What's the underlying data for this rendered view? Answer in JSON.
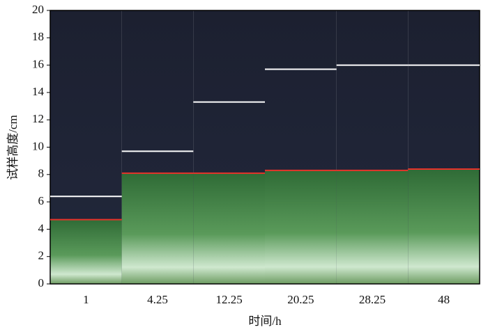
{
  "chart_data": {
    "type": "level",
    "xlabel": "时间/h",
    "ylabel": "试样高度/cm",
    "categories": [
      "1",
      "4.25",
      "12.25",
      "20.25",
      "28.25",
      "48"
    ],
    "series": [
      {
        "color": "#ffffff",
        "values": [
          6.4,
          9.7,
          13.3,
          15.7,
          16.0,
          16.0
        ]
      },
      {
        "color": "#e8322a",
        "values": [
          4.7,
          8.1,
          8.1,
          8.3,
          8.3,
          8.4
        ]
      }
    ],
    "ylim": [
      0,
      20
    ],
    "yticks": [
      0,
      2,
      4,
      6,
      8,
      10,
      12,
      14,
      16,
      18,
      20
    ]
  }
}
